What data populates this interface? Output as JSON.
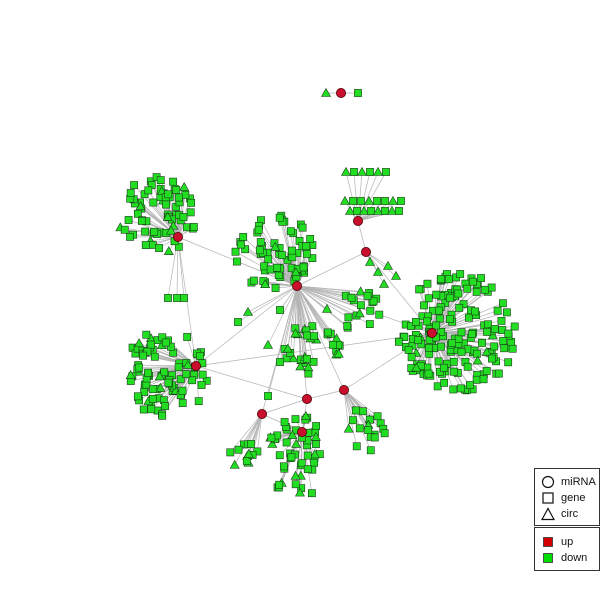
{
  "legend_shape": {
    "items": [
      {
        "label": "miRNA",
        "shape": "circle"
      },
      {
        "label": "gene",
        "shape": "square"
      },
      {
        "label": "circ",
        "shape": "triangle"
      }
    ]
  },
  "legend_color": {
    "items": [
      {
        "label": "up",
        "color": "#d40000"
      },
      {
        "label": "down",
        "color": "#00dd00"
      }
    ]
  },
  "colors": {
    "up": "#c8102e",
    "down": "#22dd22",
    "edge": "#b4b4b4",
    "node_stroke": "#1a3d1a",
    "hub_stroke": "#4a0000"
  }
}
